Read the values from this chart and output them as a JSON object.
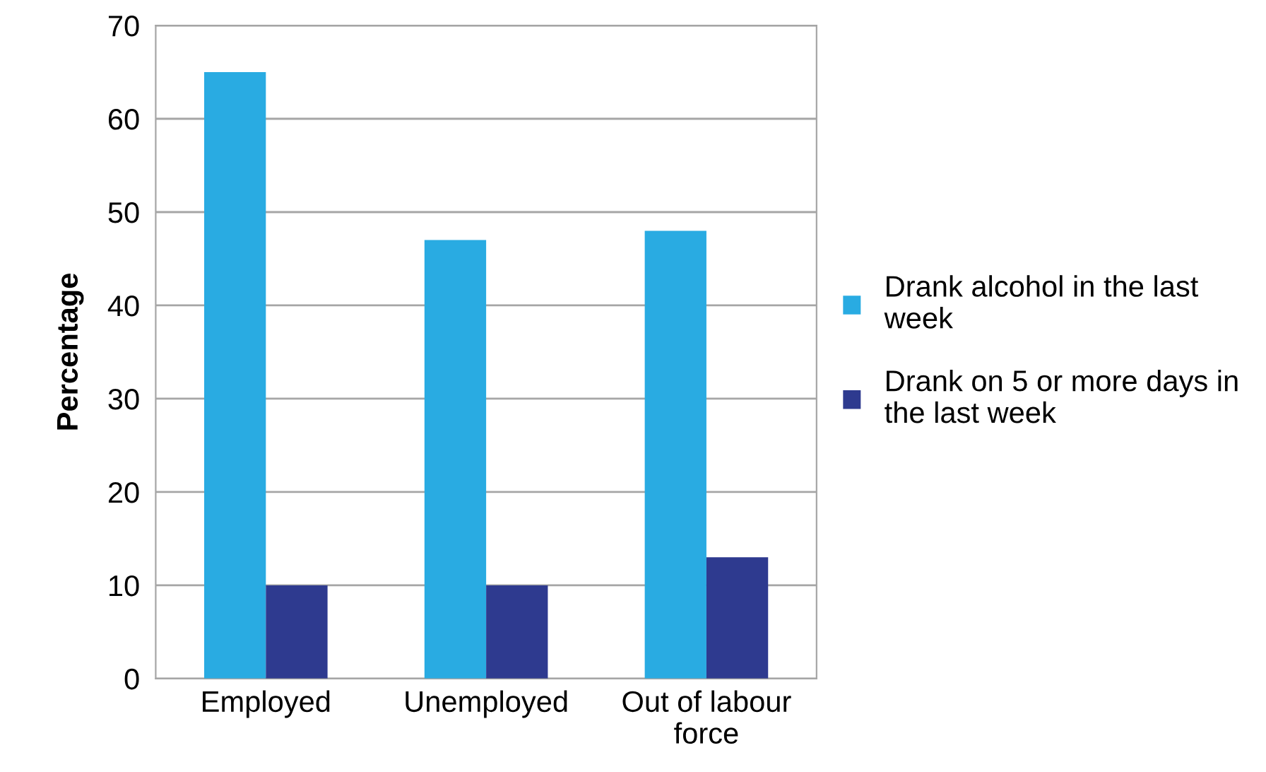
{
  "chart_data": {
    "type": "bar",
    "ylabel": "Percentage",
    "categories": [
      "Employed",
      "Unemployed",
      "Out of labour force"
    ],
    "series": [
      {
        "name": "Drank alcohol in the last week",
        "color": "#29abe2",
        "values": [
          65,
          47,
          48
        ]
      },
      {
        "name": "Drank on 5 or more days in the last week",
        "color": "#2e3a8f",
        "values": [
          10,
          10,
          13
        ]
      }
    ],
    "ylim": [
      0,
      70
    ],
    "yticks": [
      0,
      10,
      20,
      30,
      40,
      50,
      60,
      70
    ],
    "grid": "y",
    "legend": "right"
  }
}
